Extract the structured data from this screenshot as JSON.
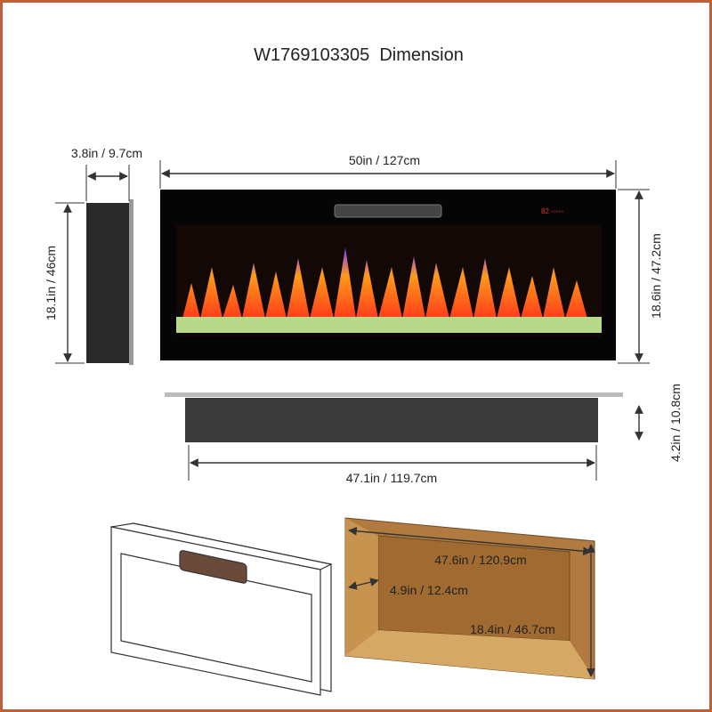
{
  "title": "W1769103305  Dimension",
  "dimensions": {
    "depth": "3.8in / 9.7cm",
    "width": "50in / 127cm",
    "side_height": "18.1in / 46cm",
    "front_height": "18.6in / 47.2cm",
    "bottom_width": "47.1in / 119.7cm",
    "bottom_depth": "4.2in / 10.8cm",
    "recess_width": "47.6in / 120.9cm",
    "recess_depth": "4.9in / 12.4cm",
    "recess_height": "18.4in / 46.7cm"
  }
}
